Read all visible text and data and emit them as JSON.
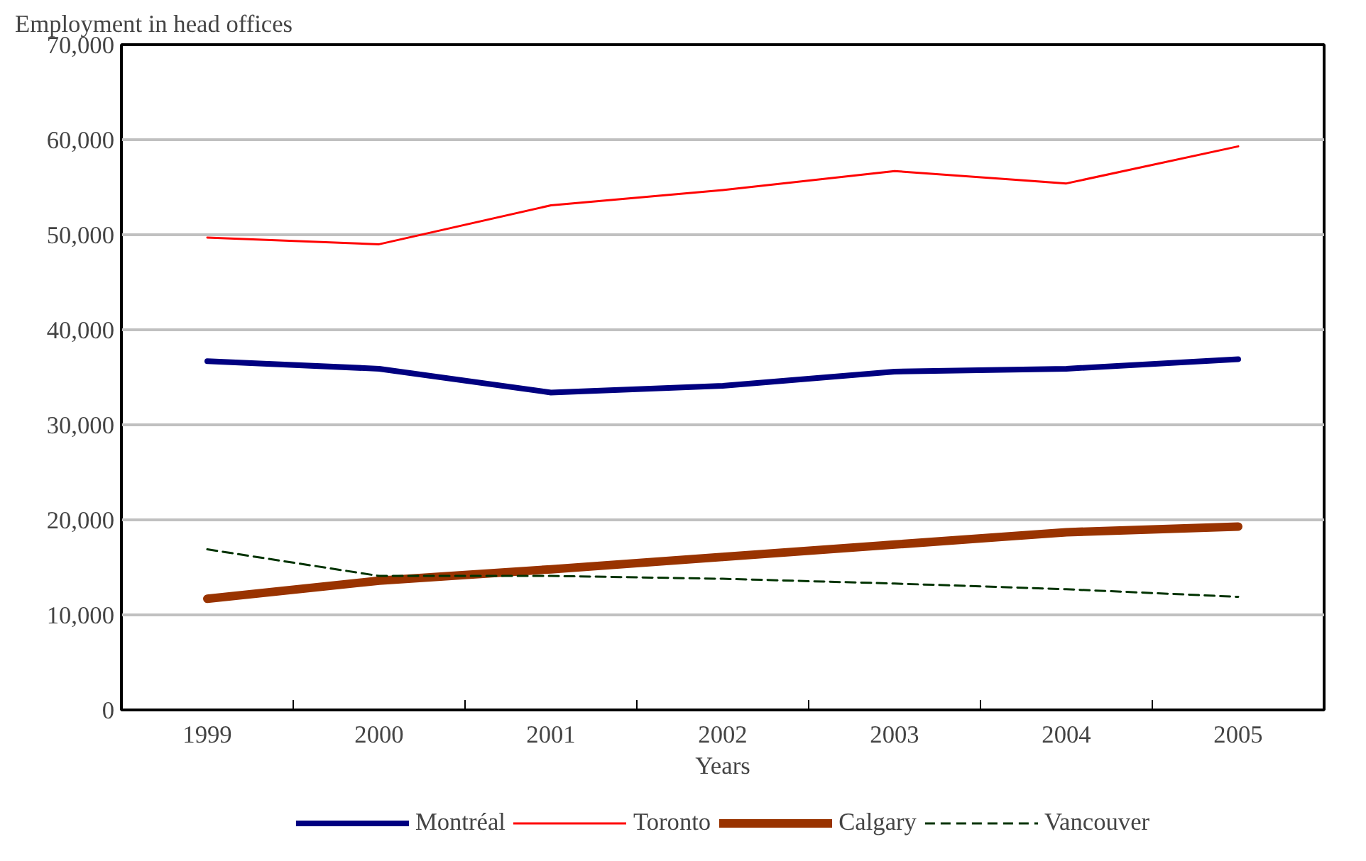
{
  "chart_data": {
    "type": "line",
    "ylabel": "Employment in head offices",
    "xlabel": "Years",
    "categories": [
      "1999",
      "2000",
      "2001",
      "2002",
      "2003",
      "2004",
      "2005"
    ],
    "series": [
      {
        "name": "Montréal",
        "color": "#000080",
        "values": [
          36700,
          35900,
          33400,
          34100,
          35600,
          35900,
          36900
        ]
      },
      {
        "name": "Toronto",
        "color": "#ff0000",
        "values": [
          49700,
          49000,
          53100,
          54700,
          56700,
          55400,
          59300
        ]
      },
      {
        "name": "Calgary",
        "color": "#993300",
        "values": [
          11700,
          13600,
          14800,
          16100,
          17400,
          18700,
          19300
        ]
      },
      {
        "name": "Vancouver",
        "color": "#003300",
        "values": [
          16900,
          14100,
          14100,
          13800,
          13300,
          12700,
          11900
        ],
        "line_style": "dashed"
      }
    ],
    "ylim": [
      0,
      70000
    ],
    "yticks": [
      {
        "value": 0,
        "label": "0"
      },
      {
        "value": 10000,
        "label": "10,000"
      },
      {
        "value": 20000,
        "label": "20,000"
      },
      {
        "value": 30000,
        "label": "30,000"
      },
      {
        "value": 40000,
        "label": "40,000"
      },
      {
        "value": 50000,
        "label": "50,000"
      },
      {
        "value": 60000,
        "label": "60,000"
      },
      {
        "value": 70000,
        "label": "70,000"
      }
    ],
    "grid": "y",
    "legend": "bottom",
    "marker": "none"
  }
}
